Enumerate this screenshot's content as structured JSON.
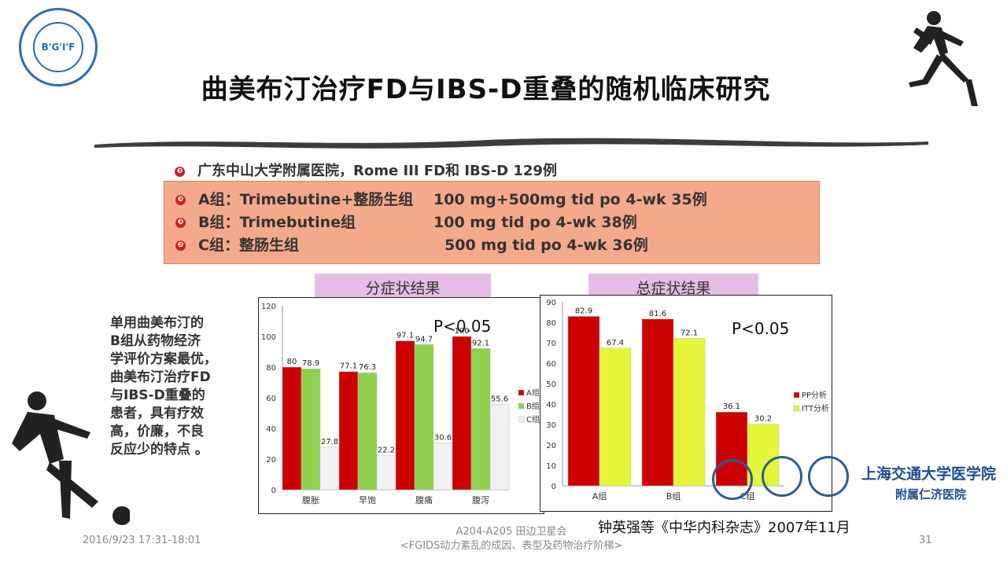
{
  "logo": {
    "text": "B'G'I'F"
  },
  "title": "曲美布汀治疗FD与IBS-D重叠的随机临床研究",
  "bullet_marker": "❸",
  "study_line": "广东中山大学附属医院，Rome III  FD和 IBS-D  129例",
  "groups": [
    {
      "name": "A组：Trimebutine+整肠生组",
      "dose": "100 mg+500mg tid po 4-wk  35例"
    },
    {
      "name": "B组：Trimebutine组",
      "dose": "100 mg tid po 4-wk   38例"
    },
    {
      "name": "C组：整肠生组",
      "dose": "500 mg tid po 4-wk   36例"
    }
  ],
  "panel_titles": {
    "left": "分症状结果",
    "right": "总症状结果"
  },
  "side_text": [
    "单用曲美布汀的",
    "B组从药物经济",
    "学评价方案最优，",
    "曲美布汀治疗FD",
    "与IBS-D重叠的",
    "患者，具有疗效",
    "高，价廉，不良",
    "反应少的特点 。"
  ],
  "colors": {
    "red": "#cc0000",
    "green": "#8fd14f",
    "white_bar": "#f2f2f2",
    "yellow_green": "#e5f53a",
    "box_fill": "#f4a98a"
  },
  "chart_data": [
    {
      "type": "bar",
      "categories": [
        "腹胀",
        "早饱",
        "腹痛",
        "腹泻"
      ],
      "series": [
        {
          "name": "A组",
          "values": [
            80,
            77.1,
            97.1,
            100
          ]
        },
        {
          "name": "B组",
          "values": [
            78.9,
            76.3,
            94.7,
            92.1
          ]
        },
        {
          "name": "C组",
          "values": [
            27.8,
            22.2,
            30.6,
            55.6
          ]
        }
      ],
      "data_labels": [
        [
          "80",
          "77.1",
          "97.1",
          "100"
        ],
        [
          "78.9",
          "76.3",
          "94.7",
          "92.1"
        ],
        [
          "27.8",
          "22.2",
          "30.6",
          "55.6"
        ]
      ],
      "ylim": [
        0,
        120
      ],
      "yticks": [
        0,
        20,
        40,
        60,
        80,
        100,
        120
      ],
      "legend": "right",
      "annotation": "P<0.05"
    },
    {
      "type": "bar",
      "categories": [
        "A组",
        "B组",
        "C组"
      ],
      "series": [
        {
          "name": "PP分析",
          "values": [
            82.9,
            81.6,
            36.1
          ]
        },
        {
          "name": "ITT分析",
          "values": [
            67.4,
            72.1,
            30.2
          ]
        }
      ],
      "data_labels": [
        [
          "82.9",
          "81.6",
          "36.1"
        ],
        [
          "67.4",
          "72.1",
          "30.2"
        ]
      ],
      "ylim": [
        0,
        90
      ],
      "yticks": [
        0,
        10,
        20,
        30,
        40,
        50,
        60,
        70,
        80,
        90
      ],
      "legend": "right",
      "annotation": "P<0.05"
    }
  ],
  "reference": "钟英强等《中华内科杂志》2007年11月",
  "footer": {
    "date": "2016/9/23  17:31-18:01",
    "center_line1": "A204-A205 田边卫星会",
    "center_line2": "<FGIDS动力紊乱的成因、表型及药物治疗阶梯>",
    "page": "31"
  },
  "university": {
    "name": "上海交通大学医学院",
    "hospital": "附属仁济医院"
  }
}
